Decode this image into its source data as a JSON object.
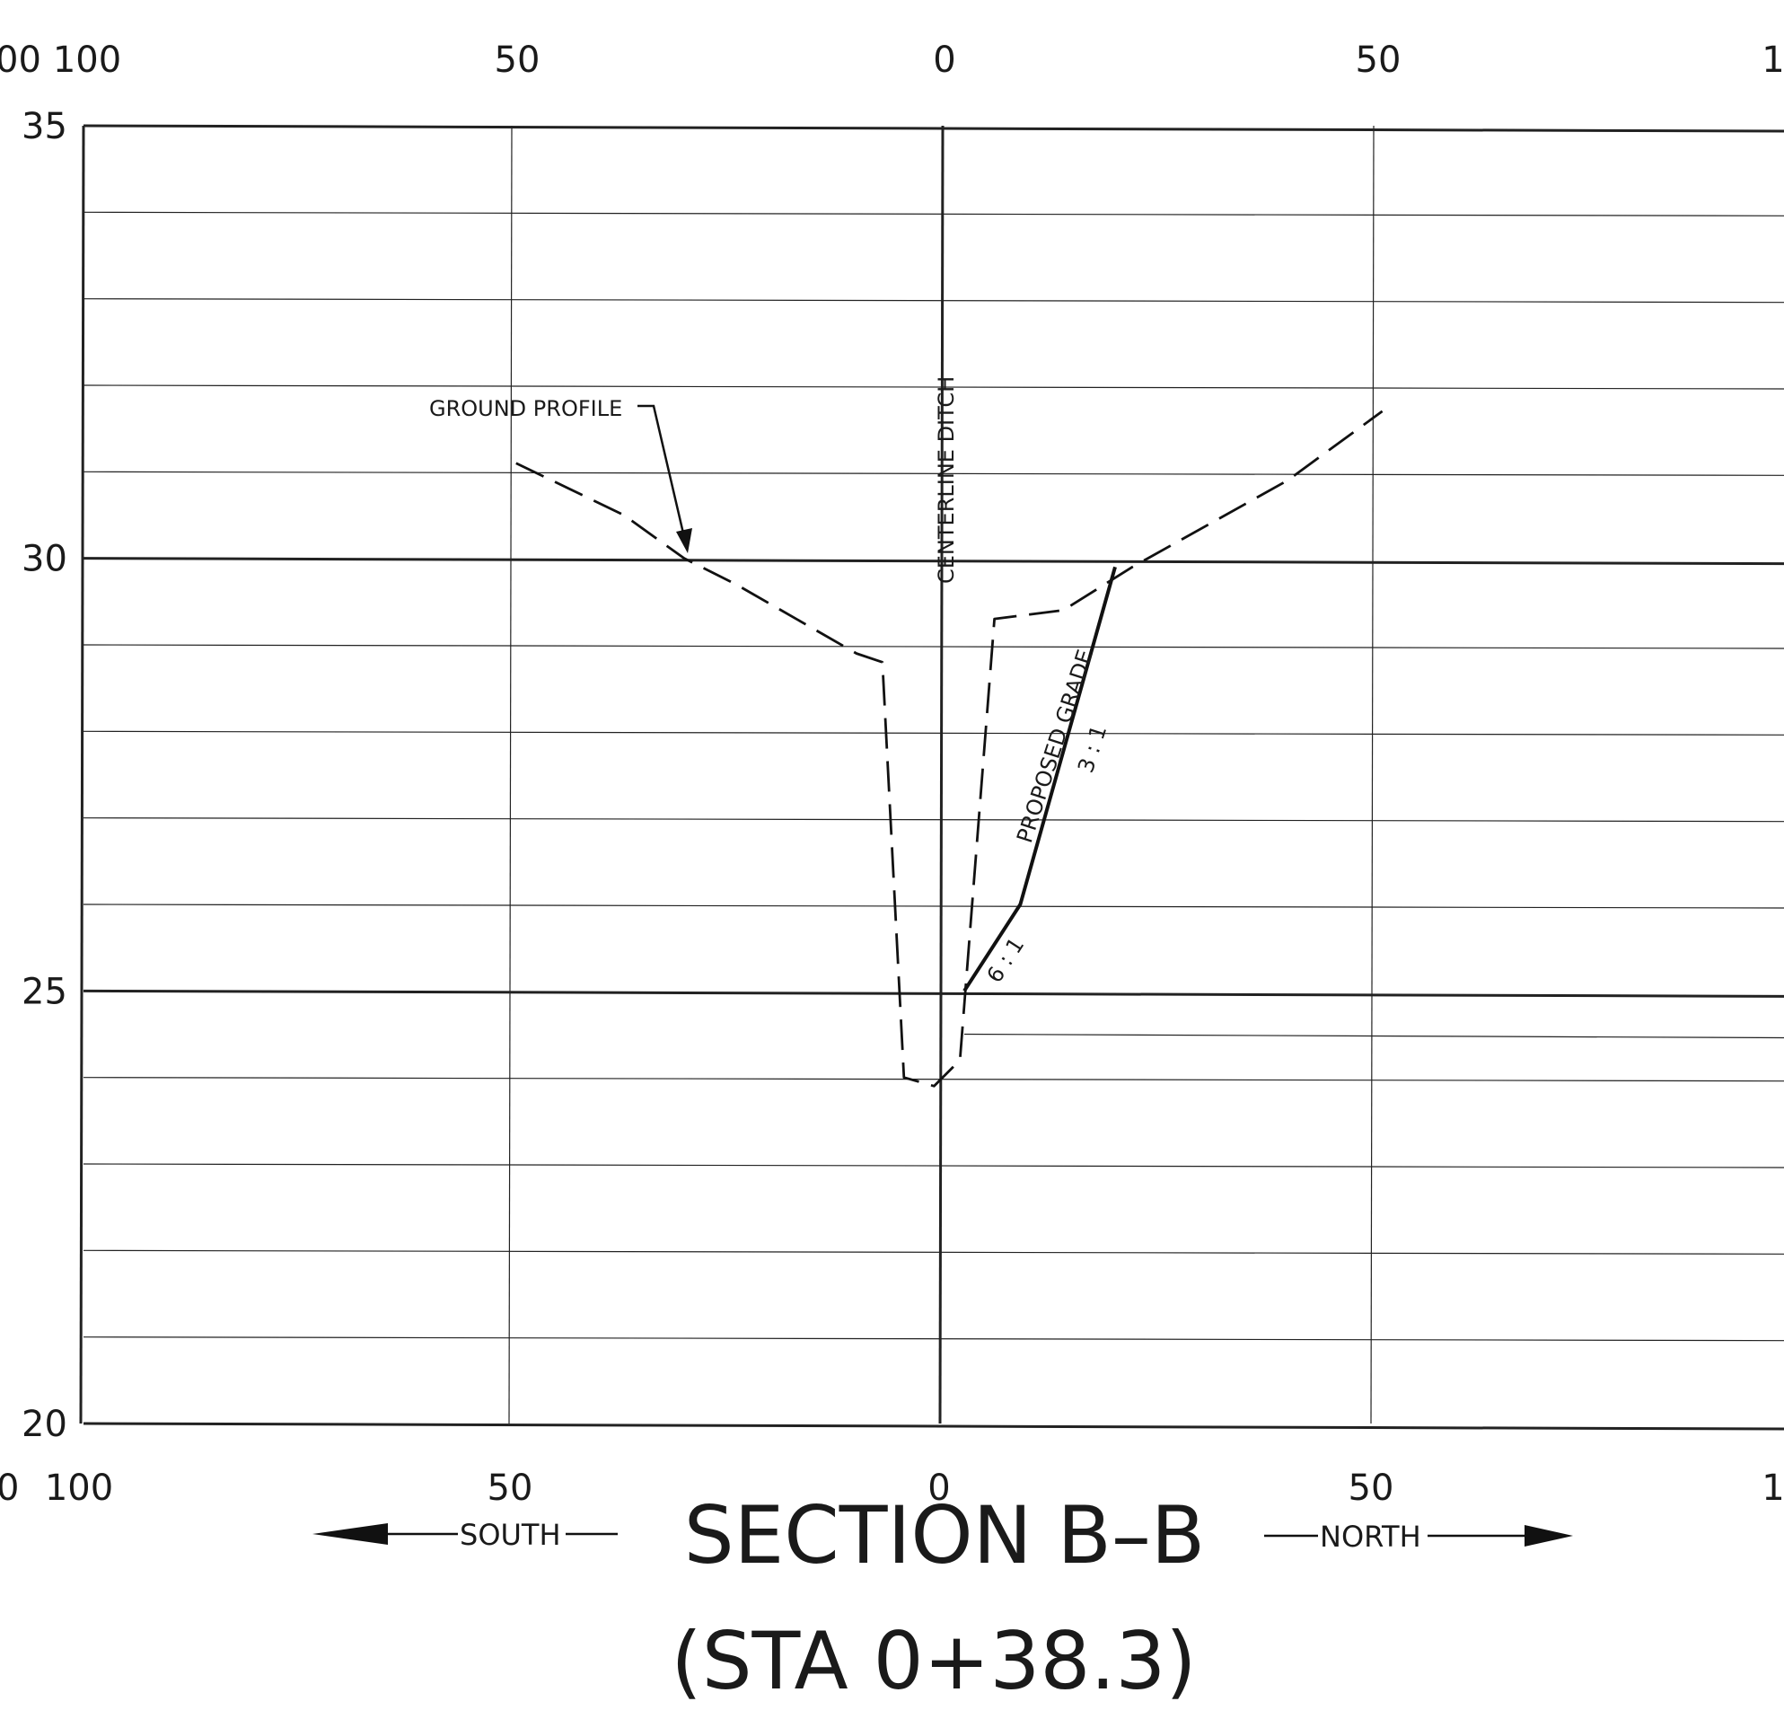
{
  "chart_data": {
    "type": "line",
    "title": "SECTION B–B",
    "subtitle": "(STA 0+38.3)",
    "direction_left": "SOUTH",
    "direction_right": "NORTH",
    "xlim": [
      -100,
      100
    ],
    "ylim": [
      20,
      35
    ],
    "x_ticks": [
      100,
      50,
      0,
      50,
      100
    ],
    "x_tick_labels_top": [
      "00",
      "100",
      "50",
      "0",
      "50",
      "1"
    ],
    "x_tick_labels_bottom": [
      "0",
      "100",
      "50",
      "0",
      "50",
      "1"
    ],
    "y_ticks": [
      20,
      25,
      30,
      35
    ],
    "y_tick_labels": [
      "20",
      "25",
      "30",
      "35"
    ],
    "grid": true,
    "series": [
      {
        "name": "GROUND PROFILE",
        "style": "dashed",
        "x": [
          -49.5,
          -37,
          -30,
          -24,
          -10,
          -7,
          -4.5,
          -1,
          2,
          6,
          14,
          22,
          40,
          51
        ],
        "y": [
          31.1,
          30.5,
          30.0,
          29.7,
          28.9,
          28.8,
          24.0,
          23.9,
          24.2,
          29.3,
          29.4,
          29.9,
          30.9,
          31.7
        ]
      },
      {
        "name": "PROPOSED GRADE",
        "style": "solid",
        "x": [
          2.5,
          9,
          20
        ],
        "y": [
          25.0,
          26.0,
          29.9
        ]
      }
    ],
    "annotations": {
      "ground_profile_label": "GROUND PROFILE",
      "centerline_label": "CENTERLINE DITCH",
      "proposed_grade_label": "PROPOSED GRADE",
      "slope_upper": "3 : 1",
      "slope_lower": "6 : 1"
    }
  }
}
